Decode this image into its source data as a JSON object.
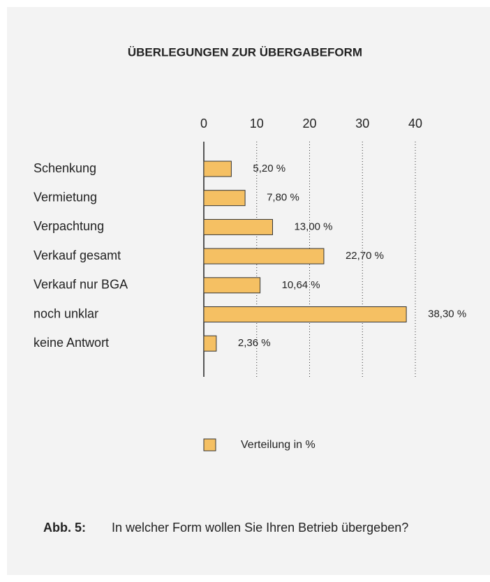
{
  "chart_data": {
    "type": "barh",
    "title": "ÜBERLEGUNGEN ZUR ÜBERGABEFORM",
    "categories": [
      "Schenkung",
      "Vermietung",
      "Verpachtung",
      "Verkauf gesamt",
      "Verkauf nur BGA",
      "noch unklar",
      "keine Antwort"
    ],
    "series": [
      {
        "name": "Verteilung in %",
        "color": "#f5c063",
        "values": [
          5.2,
          7.8,
          13.0,
          22.7,
          10.64,
          38.3,
          2.36
        ],
        "value_labels": [
          "5,20 %",
          "7,80 %",
          "13,00 %",
          "22,70 %",
          "10,64 %",
          "38,30 %",
          "2,36 %"
        ]
      }
    ],
    "xlim": [
      0,
      40
    ],
    "xticks": [
      0,
      10,
      20,
      30,
      40
    ],
    "grid": true,
    "legend": "bottom",
    "caption": {
      "label": "Abb. 5:",
      "text": "In welcher Form wollen Sie Ihren Betrieb übergeben?"
    }
  }
}
